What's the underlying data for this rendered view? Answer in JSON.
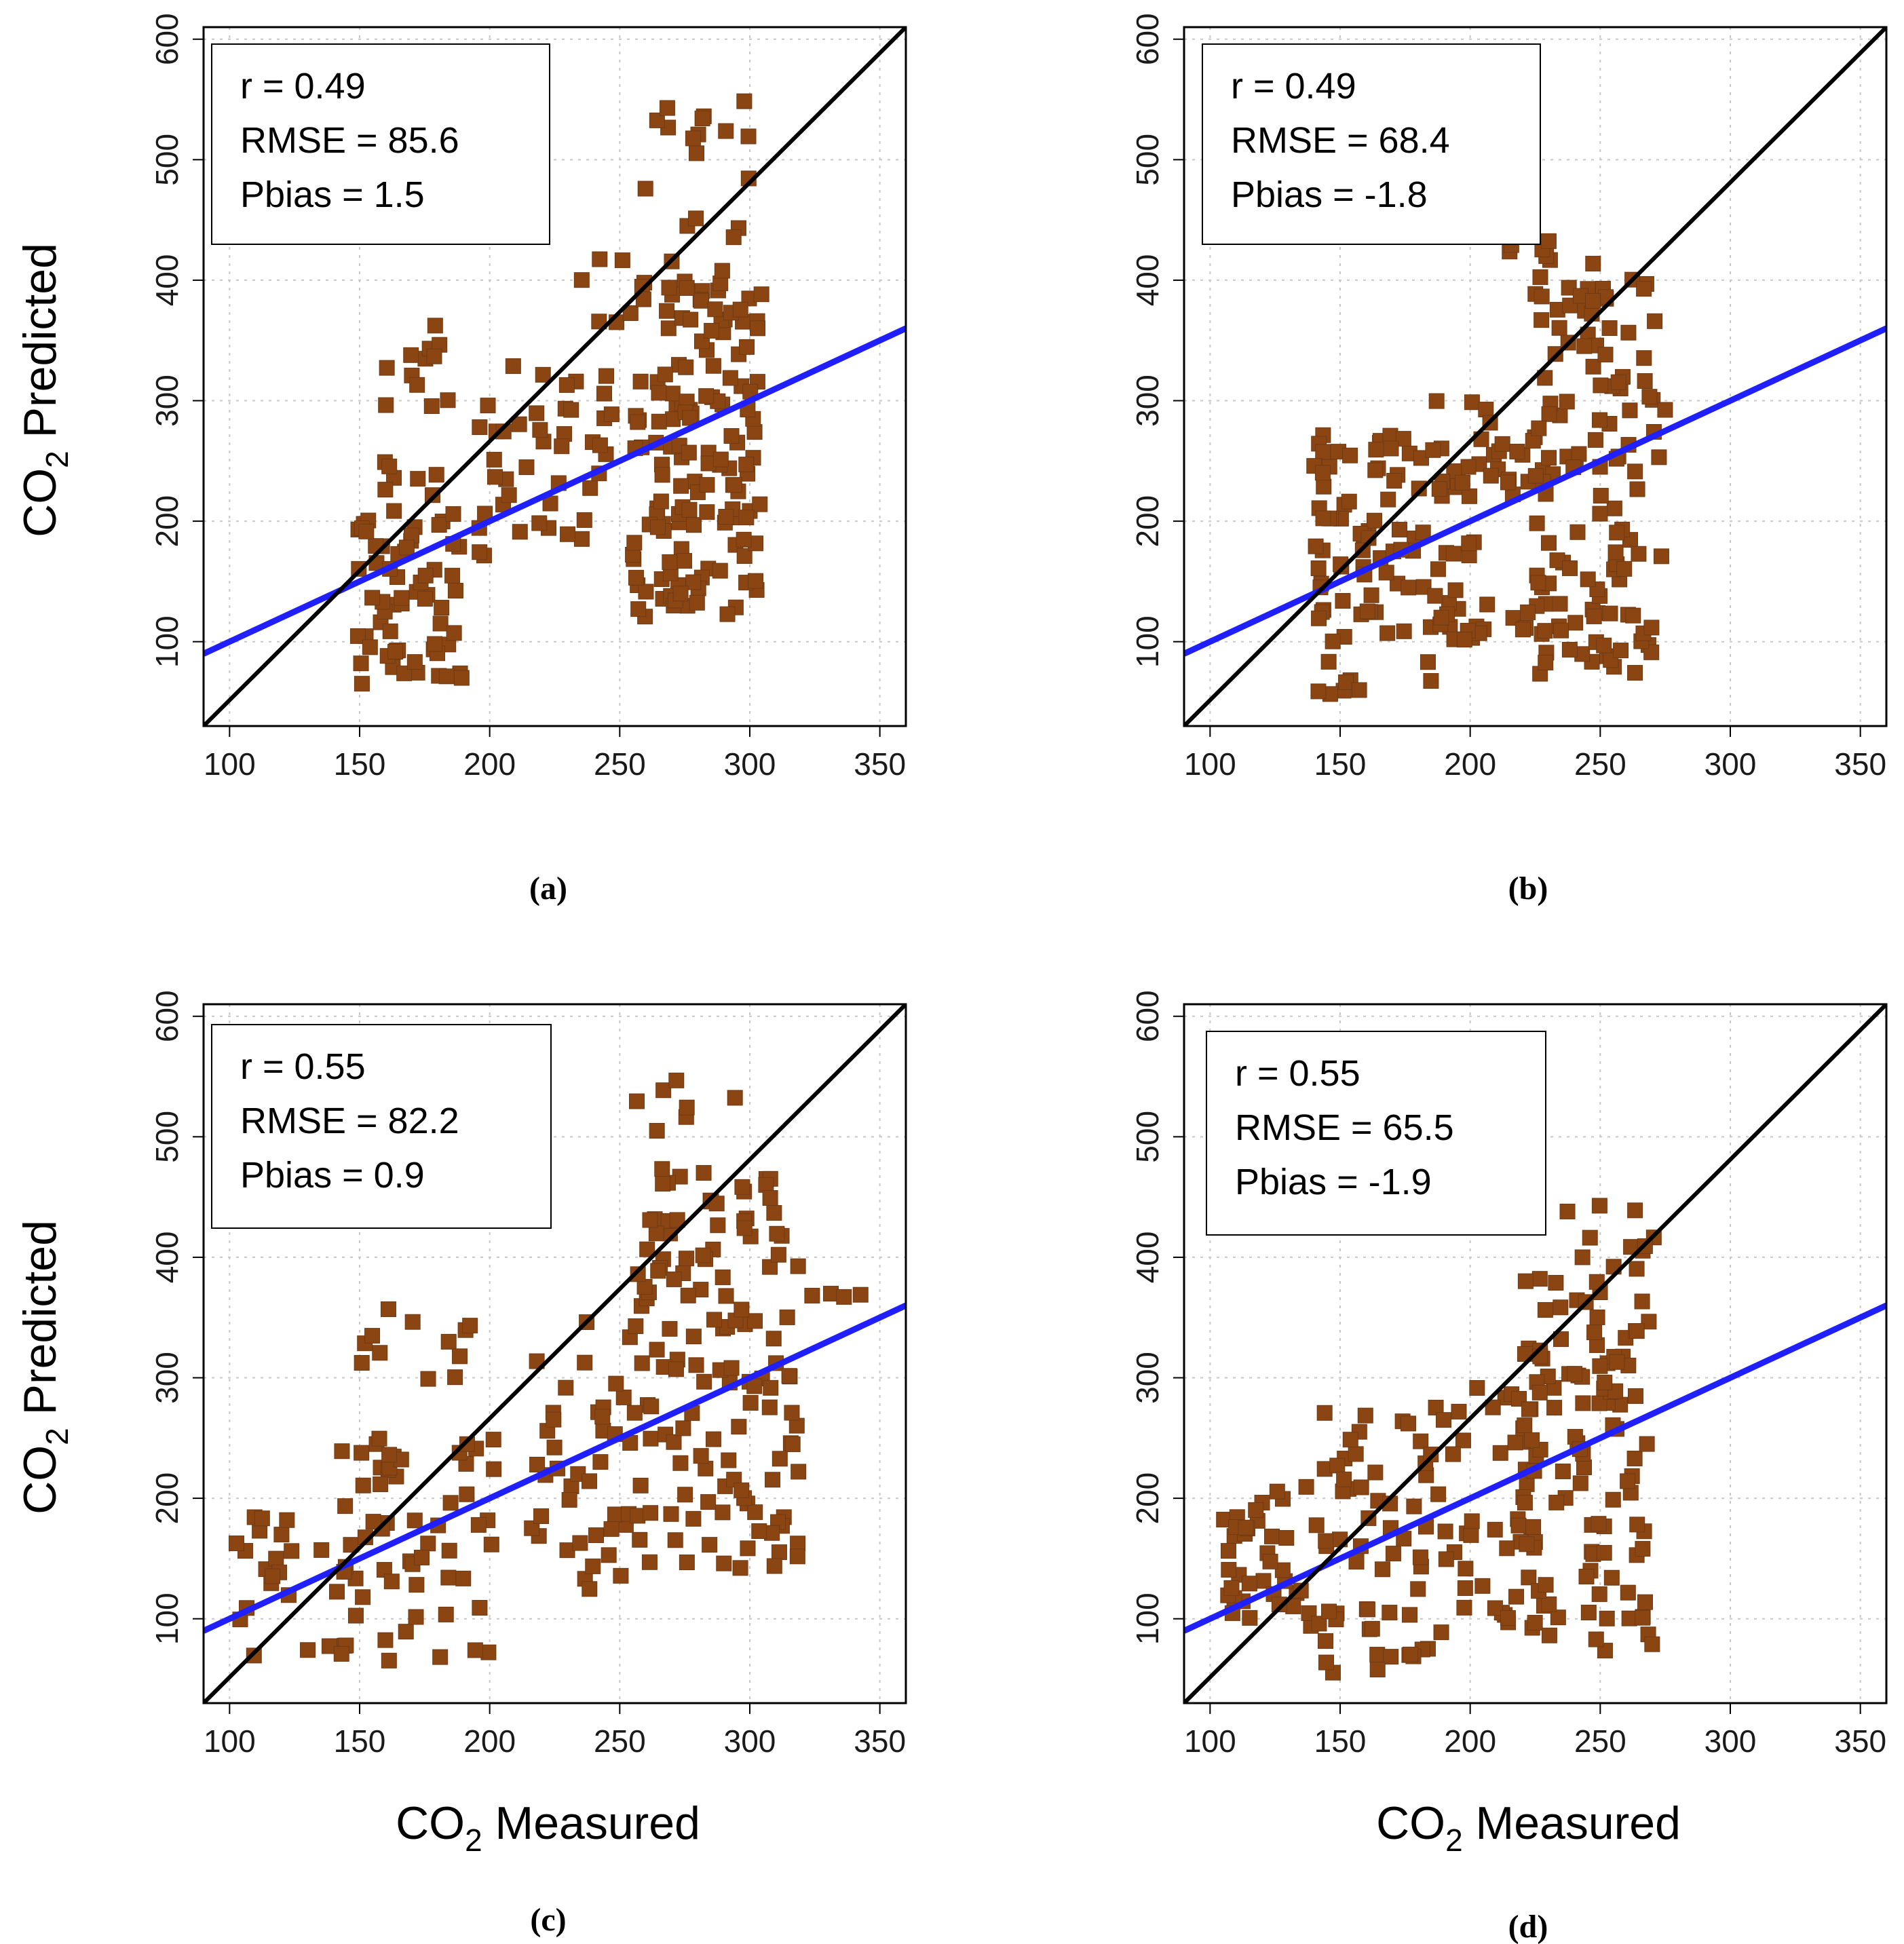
{
  "chart_data": [
    {
      "type": "scatter",
      "panel_label": "(a)",
      "xlabel": "CO",
      "xlabel_sub": "2",
      "xlabel_rest": " Measured",
      "ylabel": "CO",
      "ylabel_sub": "2",
      "ylabel_rest": " Predicted",
      "show_xlabel": false,
      "show_ylabel": true,
      "xlim": [
        90,
        360
      ],
      "ylim": [
        30,
        610
      ],
      "xticks": [
        100,
        150,
        200,
        250,
        300,
        350
      ],
      "yticks": [
        100,
        200,
        300,
        400,
        500,
        600
      ],
      "grid": true,
      "stats": [
        "r = 0.49",
        "RMSE = 85.6",
        "Pbias = 1.5"
      ],
      "one_to_one_line": {
        "x": [
          90,
          360
        ],
        "y": [
          30,
          610
        ]
      },
      "fit_line": {
        "x": [
          90,
          360
        ],
        "y": [
          90,
          360
        ]
      },
      "colors": {
        "points": "#8b4513",
        "fit": "#1f1fff",
        "identity": "#000000"
      },
      "generator": {
        "seed": 11,
        "clusters": [
          {
            "n": 70,
            "x": [
              148,
              190
            ],
            "y": [
              65,
              250
            ]
          },
          {
            "n": 12,
            "x": [
              150,
              190
            ],
            "y": [
              290,
              365
            ]
          },
          {
            "n": 40,
            "x": [
              195,
              245
            ],
            "y": [
              170,
              330
            ]
          },
          {
            "n": 25,
            "x": [
              230,
              275
            ],
            "y": [
              130,
              420
            ]
          },
          {
            "n": 130,
            "x": [
              255,
              305
            ],
            "y": [
              120,
              400
            ]
          },
          {
            "n": 18,
            "x": [
              255,
              300
            ],
            "y": [
              400,
              550
            ]
          }
        ]
      }
    },
    {
      "type": "scatter",
      "panel_label": "(b)",
      "xlabel": "CO",
      "xlabel_sub": "2",
      "xlabel_rest": " Measured",
      "ylabel": "CO",
      "ylabel_sub": "2",
      "ylabel_rest": " Predicted",
      "show_xlabel": false,
      "show_ylabel": false,
      "xlim": [
        90,
        360
      ],
      "ylim": [
        30,
        610
      ],
      "xticks": [
        100,
        150,
        200,
        250,
        300,
        350
      ],
      "yticks": [
        100,
        200,
        300,
        400,
        500,
        600
      ],
      "grid": true,
      "stats": [
        "r = 0.49",
        "RMSE = 68.4",
        "Pbias = -1.8"
      ],
      "one_to_one_line": {
        "x": [
          90,
          360
        ],
        "y": [
          30,
          610
        ]
      },
      "fit_line": {
        "x": [
          90,
          360
        ],
        "y": [
          90,
          360
        ]
      },
      "colors": {
        "points": "#8b4513",
        "fit": "#1f1fff",
        "identity": "#000000"
      },
      "generator": {
        "seed": 23,
        "clusters": [
          {
            "n": 80,
            "x": [
              140,
              185
            ],
            "y": [
              50,
              280
            ]
          },
          {
            "n": 70,
            "x": [
              185,
              235
            ],
            "y": [
              100,
              300
            ]
          },
          {
            "n": 110,
            "x": [
              225,
              275
            ],
            "y": [
              70,
              420
            ]
          },
          {
            "n": 10,
            "x": [
              215,
              250
            ],
            "y": [
              380,
              445
            ]
          }
        ]
      }
    },
    {
      "type": "scatter",
      "panel_label": "(c)",
      "xlabel": "CO",
      "xlabel_sub": "2",
      "xlabel_rest": " Measured",
      "ylabel": "CO",
      "ylabel_sub": "2",
      "ylabel_rest": " Predicted",
      "show_xlabel": true,
      "show_ylabel": true,
      "xlim": [
        90,
        360
      ],
      "ylim": [
        30,
        610
      ],
      "xticks": [
        100,
        150,
        200,
        250,
        300,
        350
      ],
      "yticks": [
        100,
        200,
        300,
        400,
        500,
        600
      ],
      "grid": true,
      "stats": [
        "r = 0.55",
        "RMSE = 82.2",
        "Pbias = 0.9"
      ],
      "one_to_one_line": {
        "x": [
          90,
          360
        ],
        "y": [
          30,
          610
        ]
      },
      "fit_line": {
        "x": [
          90,
          360
        ],
        "y": [
          90,
          360
        ]
      },
      "colors": {
        "points": "#8b4513",
        "fit": "#1f1fff",
        "identity": "#000000"
      },
      "generator": {
        "seed": 37,
        "clusters": [
          {
            "n": 20,
            "x": [
              102,
              150
            ],
            "y": [
              65,
              185
            ]
          },
          {
            "n": 60,
            "x": [
              140,
              205
            ],
            "y": [
              65,
              250
            ]
          },
          {
            "n": 12,
            "x": [
              150,
              195
            ],
            "y": [
              290,
              360
            ]
          },
          {
            "n": 40,
            "x": [
              215,
              255
            ],
            "y": [
              120,
              350
            ]
          },
          {
            "n": 130,
            "x": [
              255,
              320
            ],
            "y": [
              140,
              470
            ]
          },
          {
            "n": 10,
            "x": [
              255,
              295
            ],
            "y": [
              460,
              550
            ]
          },
          {
            "n": 4,
            "x": [
              320,
              345
            ],
            "y": [
              360,
              370
            ]
          }
        ]
      }
    },
    {
      "type": "scatter",
      "panel_label": "(d)",
      "xlabel": "CO",
      "xlabel_sub": "2",
      "xlabel_rest": " Measured",
      "ylabel": "CO",
      "ylabel_sub": "2",
      "ylabel_rest": " Predicted",
      "show_xlabel": true,
      "show_ylabel": false,
      "xlim": [
        90,
        360
      ],
      "ylim": [
        30,
        610
      ],
      "xticks": [
        100,
        150,
        200,
        250,
        300,
        350
      ],
      "yticks": [
        100,
        200,
        300,
        400,
        500,
        600
      ],
      "grid": true,
      "stats": [
        "r = 0.55",
        "RMSE = 65.5",
        "Pbias = -1.9"
      ],
      "one_to_one_line": {
        "x": [
          90,
          360
        ],
        "y": [
          30,
          610
        ]
      },
      "fit_line": {
        "x": [
          90,
          360
        ],
        "y": [
          90,
          360
        ]
      },
      "colors": {
        "points": "#8b4513",
        "fit": "#1f1fff",
        "identity": "#000000"
      },
      "generator": {
        "seed": 53,
        "clusters": [
          {
            "n": 40,
            "x": [
              105,
              145
            ],
            "y": [
              90,
              215
            ]
          },
          {
            "n": 60,
            "x": [
              140,
              190
            ],
            "y": [
              50,
              280
            ]
          },
          {
            "n": 40,
            "x": [
              190,
              225
            ],
            "y": [
              90,
              300
            ]
          },
          {
            "n": 110,
            "x": [
              220,
              270
            ],
            "y": [
              70,
              400
            ]
          },
          {
            "n": 8,
            "x": [
              230,
              285
            ],
            "y": [
              400,
              445
            ]
          }
        ]
      }
    }
  ]
}
